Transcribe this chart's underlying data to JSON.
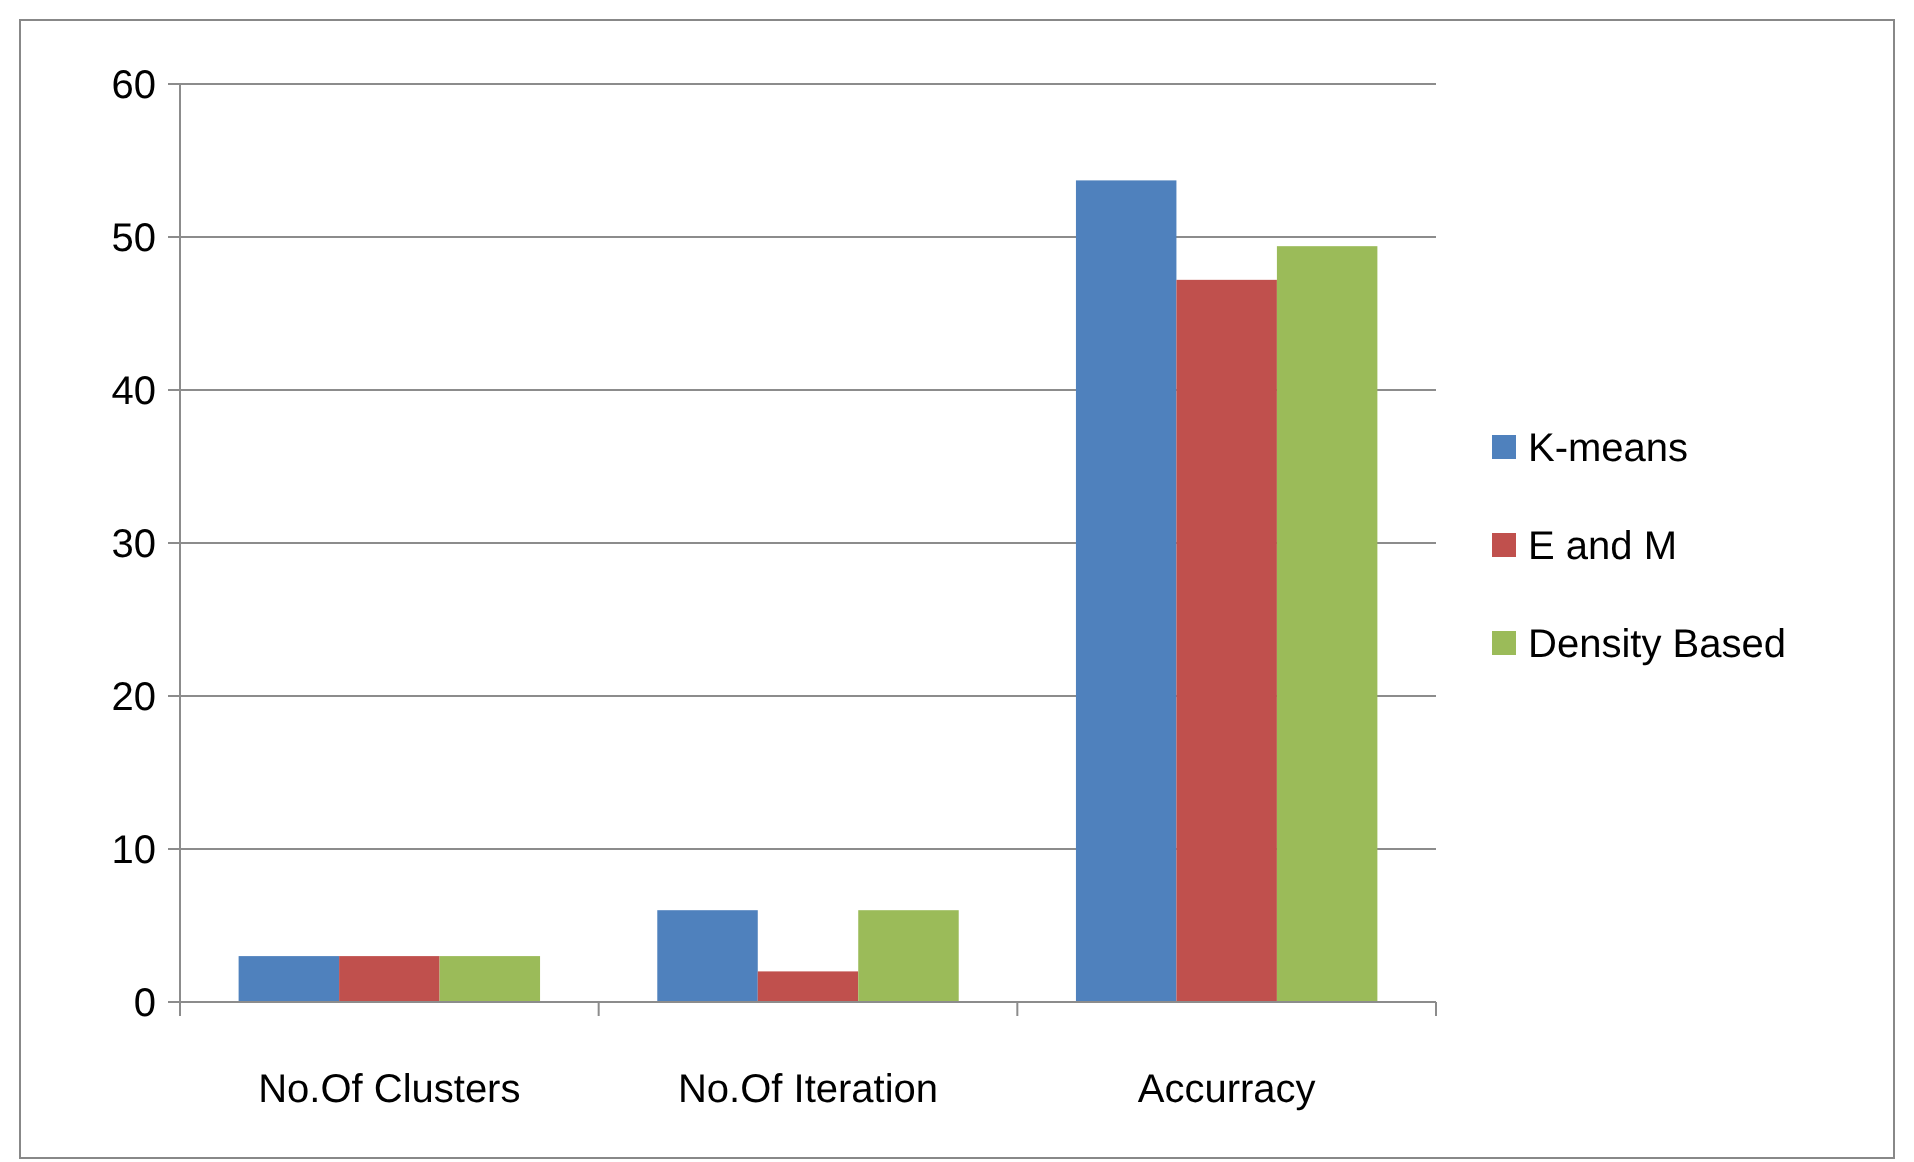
{
  "chart_data": {
    "type": "bar",
    "categories": [
      "No.Of Clusters",
      "No.Of Iteration",
      "Accurracy"
    ],
    "series": [
      {
        "name": "K-means",
        "color": "#4f81bd",
        "values": [
          3,
          6,
          53.7
        ]
      },
      {
        "name": "E and M",
        "color": "#c0504d",
        "values": [
          3,
          2,
          47.2
        ]
      },
      {
        "name": "Density Based",
        "color": "#9bbb59",
        "values": [
          3,
          6,
          49.4
        ]
      }
    ],
    "ylim": [
      0,
      60
    ],
    "yticks": [
      0,
      10,
      20,
      30,
      40,
      50,
      60
    ],
    "grid": "y",
    "legend": "right"
  }
}
